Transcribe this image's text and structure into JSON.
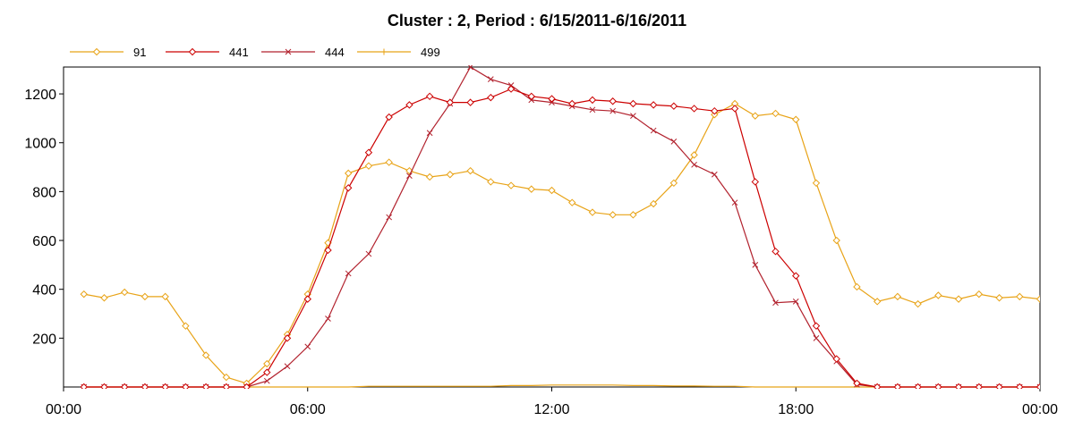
{
  "chart_data": {
    "type": "line",
    "title": "Cluster : 2, Period : 6/15/2011-6/16/2011",
    "xlabel": "",
    "ylabel": "",
    "x_ticks": [
      "00:00",
      "06:00",
      "12:00",
      "18:00",
      "00:00"
    ],
    "y_ticks": [
      200,
      400,
      600,
      800,
      1000,
      1200
    ],
    "xlim_hours": [
      0,
      24
    ],
    "ylim": [
      0,
      1310
    ],
    "grid": true,
    "legend_position": "top-left",
    "x_hours": [
      0.5,
      1.0,
      1.5,
      2.0,
      2.5,
      3.0,
      3.5,
      4.0,
      4.5,
      5.0,
      5.5,
      6.0,
      6.5,
      7.0,
      7.5,
      8.0,
      8.5,
      9.0,
      9.5,
      10.0,
      10.5,
      11.0,
      11.5,
      12.0,
      12.5,
      13.0,
      13.5,
      14.0,
      14.5,
      15.0,
      15.5,
      16.0,
      16.5,
      17.0,
      17.5,
      18.0,
      18.5,
      19.0,
      19.5,
      20.0,
      20.5,
      21.0,
      21.5,
      22.0,
      22.5,
      23.0,
      23.5,
      24.0
    ],
    "series": [
      {
        "name": "91",
        "color": "#e8a317",
        "marker": "diamond",
        "values": [
          380,
          365,
          388,
          370,
          370,
          250,
          130,
          40,
          15,
          95,
          215,
          380,
          590,
          875,
          905,
          920,
          885,
          860,
          870,
          885,
          840,
          825,
          810,
          805,
          755,
          715,
          705,
          705,
          750,
          835,
          950,
          1115,
          1160,
          1110,
          1120,
          1095,
          835,
          600,
          410,
          350,
          370,
          340,
          375,
          360,
          380,
          365,
          370,
          360
        ]
      },
      {
        "name": "441",
        "color": "#cc0000",
        "marker": "diamond",
        "values": [
          0,
          0,
          0,
          0,
          0,
          0,
          0,
          0,
          0,
          60,
          200,
          360,
          560,
          815,
          960,
          1105,
          1155,
          1190,
          1165,
          1165,
          1185,
          1220,
          1190,
          1180,
          1160,
          1175,
          1170,
          1160,
          1155,
          1150,
          1140,
          1130,
          1140,
          840,
          555,
          455,
          250,
          115,
          15,
          0,
          0,
          0,
          0,
          0,
          0,
          0,
          0,
          0
        ]
      },
      {
        "name": "444",
        "color": "#b2222e",
        "marker": "x",
        "values": [
          0,
          0,
          0,
          0,
          0,
          0,
          0,
          0,
          0,
          25,
          85,
          165,
          280,
          465,
          545,
          695,
          865,
          1040,
          1160,
          1310,
          1260,
          1235,
          1175,
          1165,
          1150,
          1135,
          1130,
          1110,
          1050,
          1005,
          910,
          870,
          755,
          500,
          345,
          350,
          200,
          105,
          10,
          0,
          0,
          0,
          0,
          0,
          0,
          0,
          0,
          0
        ]
      },
      {
        "name": "499",
        "color": "#e8a317",
        "marker": "plus",
        "values": [
          0,
          0,
          0,
          0,
          0,
          0,
          0,
          0,
          0,
          0,
          0,
          0,
          0,
          0,
          3,
          3,
          3,
          3,
          3,
          3,
          3,
          6,
          6,
          8,
          8,
          8,
          8,
          6,
          6,
          4,
          4,
          3,
          3,
          0,
          0,
          0,
          0,
          0,
          0,
          0,
          0,
          0,
          0,
          0,
          0,
          0,
          0,
          0
        ]
      }
    ]
  }
}
